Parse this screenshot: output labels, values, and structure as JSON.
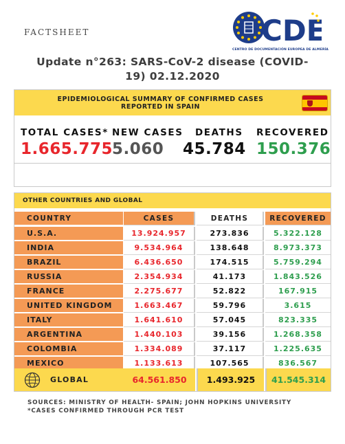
{
  "header": {
    "label": "FACTSHEET",
    "logo_text": "CDE",
    "logo_subtitle": "CENTRO DE DOCUMENTACIÓN EUROPEA DE ALMERÍA",
    "title_line1": "Update n°263: SARS-CoV-2 disease (COVID-",
    "title_line2": "19) 02.12.2020"
  },
  "spain": {
    "heading_line1": "EPIDEMIOLOGICAL SUMMARY OF CONFIRMED CASES",
    "heading_line2": "REPORTED IN SPAIN",
    "flag_icon": "spain-flag-icon",
    "total_label": "TOTAL CASES*",
    "total_value": "1.665.775",
    "new_label": "NEW CASES",
    "new_value": "5.060",
    "deaths_label": "DEATHS",
    "deaths_value": "45.784",
    "recovered_label": "RECOVERED",
    "recovered_value": "150.376"
  },
  "other": {
    "heading": "OTHER COUNTRIES AND GLOBAL",
    "columns": [
      "COUNTRY",
      "CASES",
      "DEATHS",
      "RECOVERED"
    ],
    "rows": [
      {
        "country": "U.S.A.",
        "cases": "13.924.957",
        "deaths": "273.836",
        "recovered": "5.322.128"
      },
      {
        "country": "INDIA",
        "cases": "9.534.964",
        "deaths": "138.648",
        "recovered": "8.973.373"
      },
      {
        "country": "BRAZIL",
        "cases": "6.436.650",
        "deaths": "174.515",
        "recovered": "5.759.294"
      },
      {
        "country": "RUSSIA",
        "cases": "2.354.934",
        "deaths": "41.173",
        "recovered": "1.843.526"
      },
      {
        "country": "FRANCE",
        "cases": "2.275.677",
        "deaths": "52.822",
        "recovered": "167.915"
      },
      {
        "country": "UNITED KINGDOM",
        "cases": "1.663.467",
        "deaths": "59.796",
        "recovered": "3.615"
      },
      {
        "country": "ITALY",
        "cases": "1.641.610",
        "deaths": "57.045",
        "recovered": "823.335"
      },
      {
        "country": "ARGENTINA",
        "cases": "1.440.103",
        "deaths": "39.156",
        "recovered": "1.268.358"
      },
      {
        "country": "COLOMBIA",
        "cases": "1.334.089",
        "deaths": "37.117",
        "recovered": "1.225.635"
      },
      {
        "country": "MEXICO",
        "cases": "1.133.613",
        "deaths": "107.565",
        "recovered": "836.567"
      }
    ],
    "global": {
      "icon": "globe-icon",
      "label": "GLOBAL",
      "cases": "64.561.850",
      "deaths": "1.493.925",
      "recovered": "41.545.314"
    }
  },
  "footer": {
    "sources": "SOURCES: MINISTRY OF HEALTH- SPAIN; JOHN HOPKINS UNIVERSITY",
    "note": "*CASES CONFIRMED THROUGH PCR TEST"
  },
  "colors": {
    "yellow": "#fcd94e",
    "orange": "#f49a55",
    "red": "#e8262c",
    "green": "#2e9e4e",
    "logo_blue": "#1e3d8a"
  }
}
